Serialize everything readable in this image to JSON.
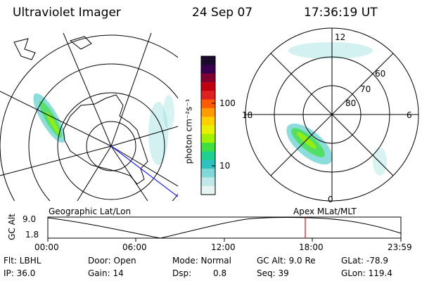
{
  "header": {
    "title": "Ultraviolet Imager",
    "date": "24 Sep 07",
    "time": "17:36:19 UT"
  },
  "colorbar": {
    "unit_label": "photon cm⁻²s⁻¹",
    "scale": "log",
    "tick_labels": [
      "100",
      "10"
    ],
    "colors": [
      "#1a0a2e",
      "#3a0050",
      "#800030",
      "#c00010",
      "#e02020",
      "#ff5a00",
      "#ff9a00",
      "#ffd000",
      "#e8f000",
      "#a0f000",
      "#40e040",
      "#20d090",
      "#30c0c0",
      "#80d8d8",
      "#c0e8e8",
      "#e8f4f4"
    ]
  },
  "left_panel": {
    "label": "Geographic Lat/Lon"
  },
  "right_panel": {
    "label": "Apex MLat/MLT",
    "mlt_labels": {
      "top": "12",
      "left": "18",
      "right": "6",
      "bottom": "0"
    },
    "lat_labels": [
      "80",
      "70",
      "60"
    ]
  },
  "altitude_plot": {
    "y_axis_label": "GC Alt",
    "y_ticks": [
      "9.0",
      "1.8"
    ],
    "x_ticks": [
      "00:00",
      "06:00",
      "12:00",
      "18:00",
      "23:59"
    ],
    "marker_color": "#ff0000"
  },
  "info": {
    "filter": "Flt: LBHL",
    "door": "Door: Open",
    "mode": "Mode: Normal",
    "gc_alt": "GC Alt: 9.0 Re",
    "glat": "GLat: -78.9",
    "ip": "IP: 36.0",
    "gain": "Gain: 14",
    "dsp_label": "Dsp:",
    "dsp_value": "0.8",
    "seq": "Seq: 39",
    "glon": "GLon: 119.4"
  }
}
